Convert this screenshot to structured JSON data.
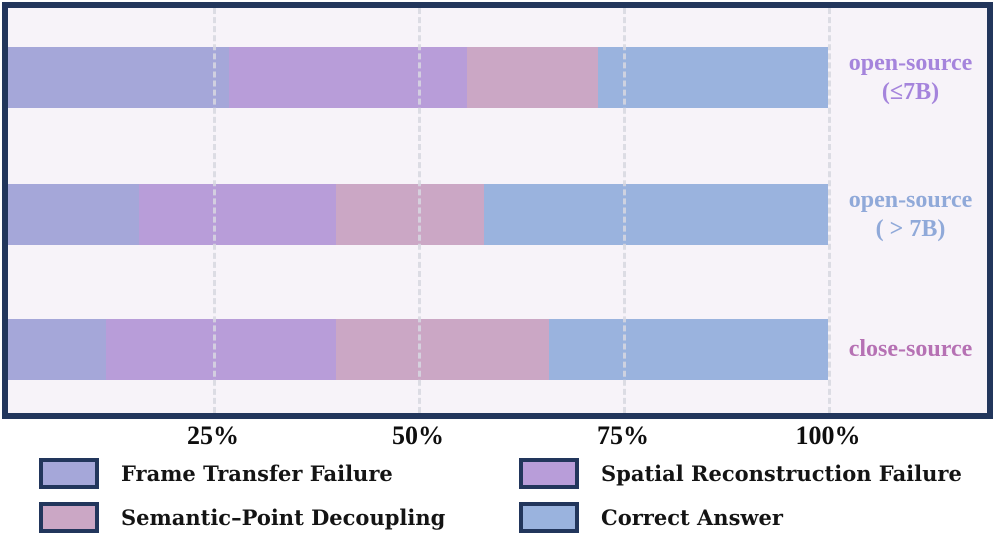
{
  "chart_data": {
    "type": "bar",
    "orientation": "horizontal",
    "stacked": true,
    "unit": "percent",
    "title": "",
    "xlabel": "",
    "ylabel": "",
    "xlim": [
      0,
      100
    ],
    "grid": "vertical-dashed",
    "legend_position": "bottom",
    "categories": [
      "open-source (≤7B)",
      "open-source ( > 7B)",
      "close-source"
    ],
    "series": [
      {
        "name": "Frame Transfer Failure",
        "color": "#a5a7d9",
        "values": [
          27,
          16,
          12
        ]
      },
      {
        "name": "Spatial Reconstruction Failure",
        "color": "#b89dd9",
        "values": [
          29,
          24,
          28
        ]
      },
      {
        "name": "Semantic–Point Decoupling",
        "color": "#cba7c5",
        "values": [
          16,
          18,
          26
        ]
      },
      {
        "name": "Correct Answer",
        "color": "#9ab3de",
        "values": [
          28,
          42,
          34
        ]
      }
    ],
    "x_ticks": [
      {
        "label": "25%",
        "value": 25
      },
      {
        "label": "50%",
        "value": 50
      },
      {
        "label": "75%",
        "value": 75
      },
      {
        "label": "100%",
        "value": 100
      }
    ]
  },
  "plot_style": {
    "background": "#f7f3f9",
    "border_color": "#22365c",
    "gridline_color": "#d7d7e0",
    "tick_label_color": "#0e0e0e"
  },
  "category_labels": [
    {
      "lines": [
        "open-source",
        "(≤7B)"
      ],
      "color": "#a584dc"
    },
    {
      "lines": [
        "open-source",
        "( > 7B)"
      ],
      "color": "#90a9d9"
    },
    {
      "lines": [
        "close-source"
      ],
      "color": "#b671b4"
    }
  ],
  "legend": {
    "swatch_border_color": "#22365c",
    "text_color": "#141414",
    "items": [
      {
        "label": "Frame Transfer Failure",
        "color": "#a5a7d9"
      },
      {
        "label": "Spatial Reconstruction Failure",
        "color": "#b89dd9"
      },
      {
        "label": "Semantic–Point Decoupling",
        "color": "#cba7c5"
      },
      {
        "label": "Correct Answer",
        "color": "#9ab3de"
      }
    ]
  }
}
